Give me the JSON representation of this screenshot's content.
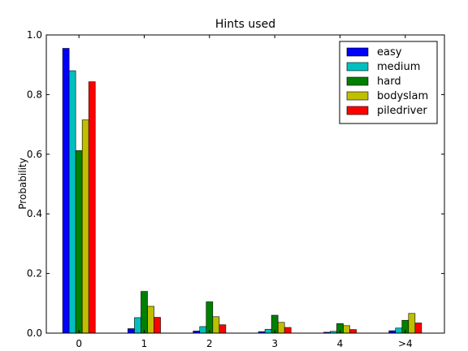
{
  "chart_data": {
    "type": "bar",
    "title": "Hints used",
    "xlabel": "",
    "ylabel": "Probability",
    "ylim": [
      0,
      1.0
    ],
    "yticks": [
      "0.0",
      "0.2",
      "0.4",
      "0.6",
      "0.8",
      "1.0"
    ],
    "categories": [
      "0",
      "1",
      "2",
      "3",
      "4",
      ">4"
    ],
    "legend_position": "top-right",
    "series": [
      {
        "name": "easy",
        "color": "#0000ff",
        "values": [
          0.955,
          0.015,
          0.007,
          0.005,
          0.003,
          0.008
        ]
      },
      {
        "name": "medium",
        "color": "#00bfbf",
        "values": [
          0.88,
          0.052,
          0.022,
          0.013,
          0.006,
          0.017
        ]
      },
      {
        "name": "hard",
        "color": "#008000",
        "values": [
          0.612,
          0.14,
          0.105,
          0.06,
          0.032,
          0.043
        ]
      },
      {
        "name": "bodyslam",
        "color": "#bfbf00",
        "values": [
          0.715,
          0.09,
          0.055,
          0.036,
          0.025,
          0.066
        ]
      },
      {
        "name": "piledriver",
        "color": "#ff0000",
        "values": [
          0.843,
          0.053,
          0.028,
          0.019,
          0.012,
          0.034
        ]
      }
    ]
  }
}
